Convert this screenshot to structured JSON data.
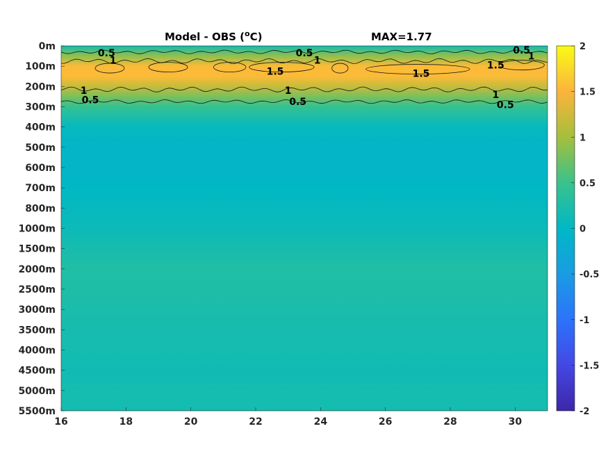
{
  "chart_data": {
    "type": "heatmap",
    "title": "Model - OBS (",
    "title_unit": "C)",
    "title_degree": "o",
    "title_max": "MAX=1.77",
    "x_ticks": [
      16,
      18,
      20,
      22,
      24,
      26,
      28,
      30
    ],
    "x_range": [
      16,
      31
    ],
    "y_tick_labels": [
      "0m",
      "100m",
      "200m",
      "300m",
      "400m",
      "500m",
      "600m",
      "700m",
      "800m",
      "1000m",
      "1500m",
      "2000m",
      "2500m",
      "3000m",
      "3500m",
      "4000m",
      "4500m",
      "5000m",
      "5500m"
    ],
    "colorbar": {
      "range": [
        -2,
        2
      ],
      "ticks": [
        2,
        1.5,
        1,
        0.5,
        0,
        -0.5,
        -1,
        -1.5,
        -2
      ],
      "tick_labels": [
        "2",
        "1.5",
        "1",
        "0.5",
        "0",
        "-0.5",
        "-1",
        "-1.5",
        "-2"
      ],
      "colormap": "parula"
    },
    "depth_profile": [
      {
        "depth": "0m",
        "value": 0.15
      },
      {
        "depth": "50m",
        "value": 0.9
      },
      {
        "depth": "100m",
        "value": 1.55
      },
      {
        "depth": "150m",
        "value": 1.55
      },
      {
        "depth": "200m",
        "value": 1.2
      },
      {
        "depth": "250m",
        "value": 0.8
      },
      {
        "depth": "300m",
        "value": 0.45
      },
      {
        "depth": "400m",
        "value": 0.05
      },
      {
        "depth": "500m",
        "value": -0.05
      },
      {
        "depth": "600m",
        "value": -0.05
      },
      {
        "depth": "700m",
        "value": 0.0
      },
      {
        "depth": "800m",
        "value": 0.05
      },
      {
        "depth": "1000m",
        "value": 0.1
      },
      {
        "depth": "1500m",
        "value": 0.2
      },
      {
        "depth": "2000m",
        "value": 0.28
      },
      {
        "depth": "2500m",
        "value": 0.26
      },
      {
        "depth": "3000m",
        "value": 0.22
      },
      {
        "depth": "3500m",
        "value": 0.2
      },
      {
        "depth": "4000m",
        "value": 0.18
      },
      {
        "depth": "4500m",
        "value": 0.14
      },
      {
        "depth": "5000m",
        "value": 0.18
      },
      {
        "depth": "5500m",
        "value": 0.18
      }
    ],
    "contour_labels": [
      {
        "text": "0.5",
        "x": 17.4,
        "depth_index": 0.35
      },
      {
        "text": "1",
        "x": 17.6,
        "depth_index": 0.7
      },
      {
        "text": "0.5",
        "x": 23.5,
        "depth_index": 0.35
      },
      {
        "text": "1",
        "x": 23.9,
        "depth_index": 0.7
      },
      {
        "text": "0.5",
        "x": 30.2,
        "depth_index": 0.2
      },
      {
        "text": "1",
        "x": 30.5,
        "depth_index": 0.5
      },
      {
        "text": "1.5",
        "x": 22.6,
        "depth_index": 1.25
      },
      {
        "text": "1.5",
        "x": 27.1,
        "depth_index": 1.35
      },
      {
        "text": "1.5",
        "x": 29.4,
        "depth_index": 0.95
      },
      {
        "text": "1",
        "x": 16.7,
        "depth_index": 2.2
      },
      {
        "text": "0.5",
        "x": 16.9,
        "depth_index": 2.65
      },
      {
        "text": "1",
        "x": 23.0,
        "depth_index": 2.2
      },
      {
        "text": "0.5",
        "x": 23.3,
        "depth_index": 2.75
      },
      {
        "text": "1",
        "x": 29.4,
        "depth_index": 2.4
      },
      {
        "text": "0.5",
        "x": 29.7,
        "depth_index": 2.9
      }
    ]
  }
}
